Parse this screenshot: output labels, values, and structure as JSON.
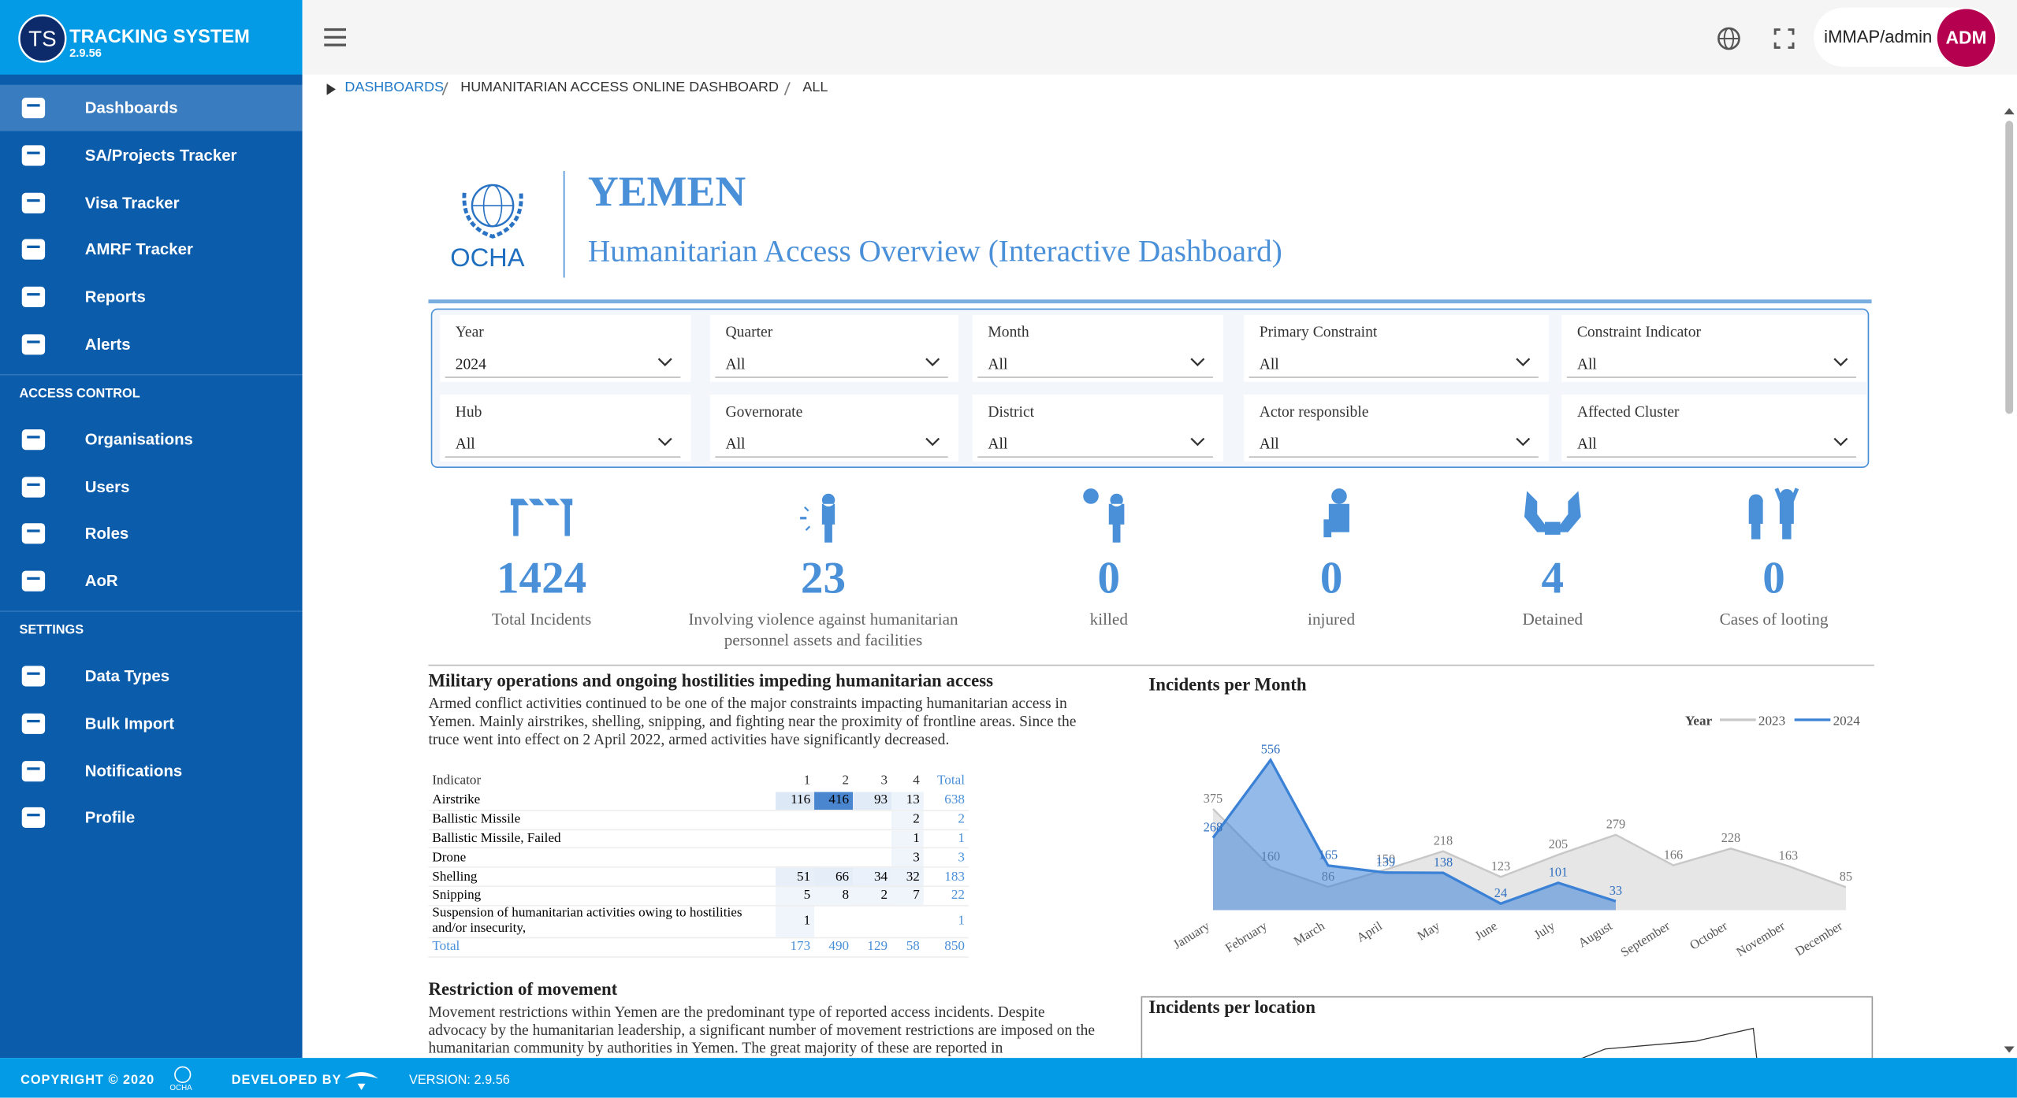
{
  "sidebar": {
    "logo": "TS",
    "brand": "TRACKING SYSTEM",
    "version": "2.9.56",
    "menu": [
      "Dashboards",
      "SA/Projects Tracker",
      "Visa Tracker",
      "AMRF Tracker",
      "Reports",
      "Alerts"
    ],
    "sections": [
      {
        "title": "ACCESS CONTROL",
        "items": [
          "Organisations",
          "Users",
          "Roles",
          "AoR"
        ]
      },
      {
        "title": "SETTINGS",
        "items": [
          "Data Types",
          "Bulk Import",
          "Notifications",
          "Profile"
        ]
      }
    ]
  },
  "topbar": {
    "user": "iMMAP/admin",
    "avatar": "ADM"
  },
  "breadcrumb": [
    "DASHBOARDS",
    "HUMANITARIAN ACCESS ONLINE DASHBOARD",
    "ALL"
  ],
  "dashboard": {
    "org": "OCHA",
    "country": "YEMEN",
    "title": "Humanitarian Access Overview (Interactive Dashboard)",
    "filters": [
      {
        "label": "Year",
        "value": "2024"
      },
      {
        "label": "Quarter",
        "value": "All"
      },
      {
        "label": "Month",
        "value": "All"
      },
      {
        "label": "Primary Constraint",
        "value": "All"
      },
      {
        "label": "Constraint Indicator",
        "value": "All"
      },
      {
        "label": "Hub",
        "value": "All"
      },
      {
        "label": "Governorate",
        "value": "All"
      },
      {
        "label": "District",
        "value": "All"
      },
      {
        "label": "Actor responsible",
        "value": "All"
      },
      {
        "label": "Affected Cluster",
        "value": "All"
      }
    ],
    "kpis": [
      {
        "value": 1424,
        "label": "Total Incidents"
      },
      {
        "value": 23,
        "label": "Involving violence against humanitarian personnel assets and facilities"
      },
      {
        "value": 0,
        "label": "killed"
      },
      {
        "value": 0,
        "label": "injured"
      },
      {
        "value": 4,
        "label": "Detained"
      },
      {
        "value": 0,
        "label": "Cases of looting"
      }
    ],
    "sections": [
      {
        "title": "Military operations and ongoing hostilities impeding humanitarian access",
        "text": "Armed conflict activities continued to be one of the major constraints impacting humanitarian access in Yemen. Mainly airstrikes, shelling, snipping, and fighting near the proximity of frontline areas. Since the truce went into effect on 2 April 2022, armed activities have significantly decreased."
      },
      {
        "title": "Restriction of movement",
        "text": "Movement restrictions within Yemen are the predominant type of reported access incidents. Despite advocacy by the humanitarian leadership, a significant number of movement restrictions are imposed on the humanitarian community by authorities in Yemen. The great majority of these are reported in"
      }
    ],
    "table": {
      "columns": [
        "Indicator",
        "1",
        "2",
        "3",
        "4",
        "Total"
      ],
      "rows": [
        [
          "Airstrike",
          116,
          416,
          93,
          13,
          638
        ],
        [
          "Ballistic Missile",
          null,
          null,
          null,
          2,
          2
        ],
        [
          "Ballistic Missile, Failed",
          null,
          null,
          null,
          1,
          1
        ],
        [
          "Drone",
          null,
          null,
          null,
          3,
          3
        ],
        [
          "Shelling",
          51,
          66,
          34,
          32,
          183
        ],
        [
          "Snipping",
          5,
          8,
          2,
          7,
          22
        ],
        [
          "Suspension of humanitarian activities owing to hostilities and/or insecurity,",
          1,
          null,
          null,
          null,
          1
        ]
      ],
      "total": [
        "Total",
        173,
        490,
        129,
        58,
        850
      ]
    },
    "location_title": "Incidents per location"
  },
  "chart_data": {
    "type": "area",
    "title": "Incidents per Month",
    "legend_title": "Year",
    "categories": [
      "January",
      "February",
      "March",
      "April",
      "May",
      "June",
      "July",
      "August",
      "September",
      "October",
      "November",
      "December"
    ],
    "series": [
      {
        "name": "2023",
        "color": "#c8c8c8",
        "values": [
          375,
          160,
          86,
          150,
          218,
          123,
          205,
          279,
          166,
          228,
          163,
          85
        ]
      },
      {
        "name": "2024",
        "color": "#3b82d6",
        "values": [
          268,
          556,
          165,
          139,
          138,
          24,
          101,
          33,
          null,
          null,
          null,
          null
        ]
      }
    ],
    "ylim": [
      0,
      600
    ]
  },
  "footer": {
    "copyright": "COPYRIGHT © 2020",
    "ocha": "OCHA",
    "developed_by": "DEVELOPED BY",
    "version": "VERSION: 2.9.56"
  }
}
